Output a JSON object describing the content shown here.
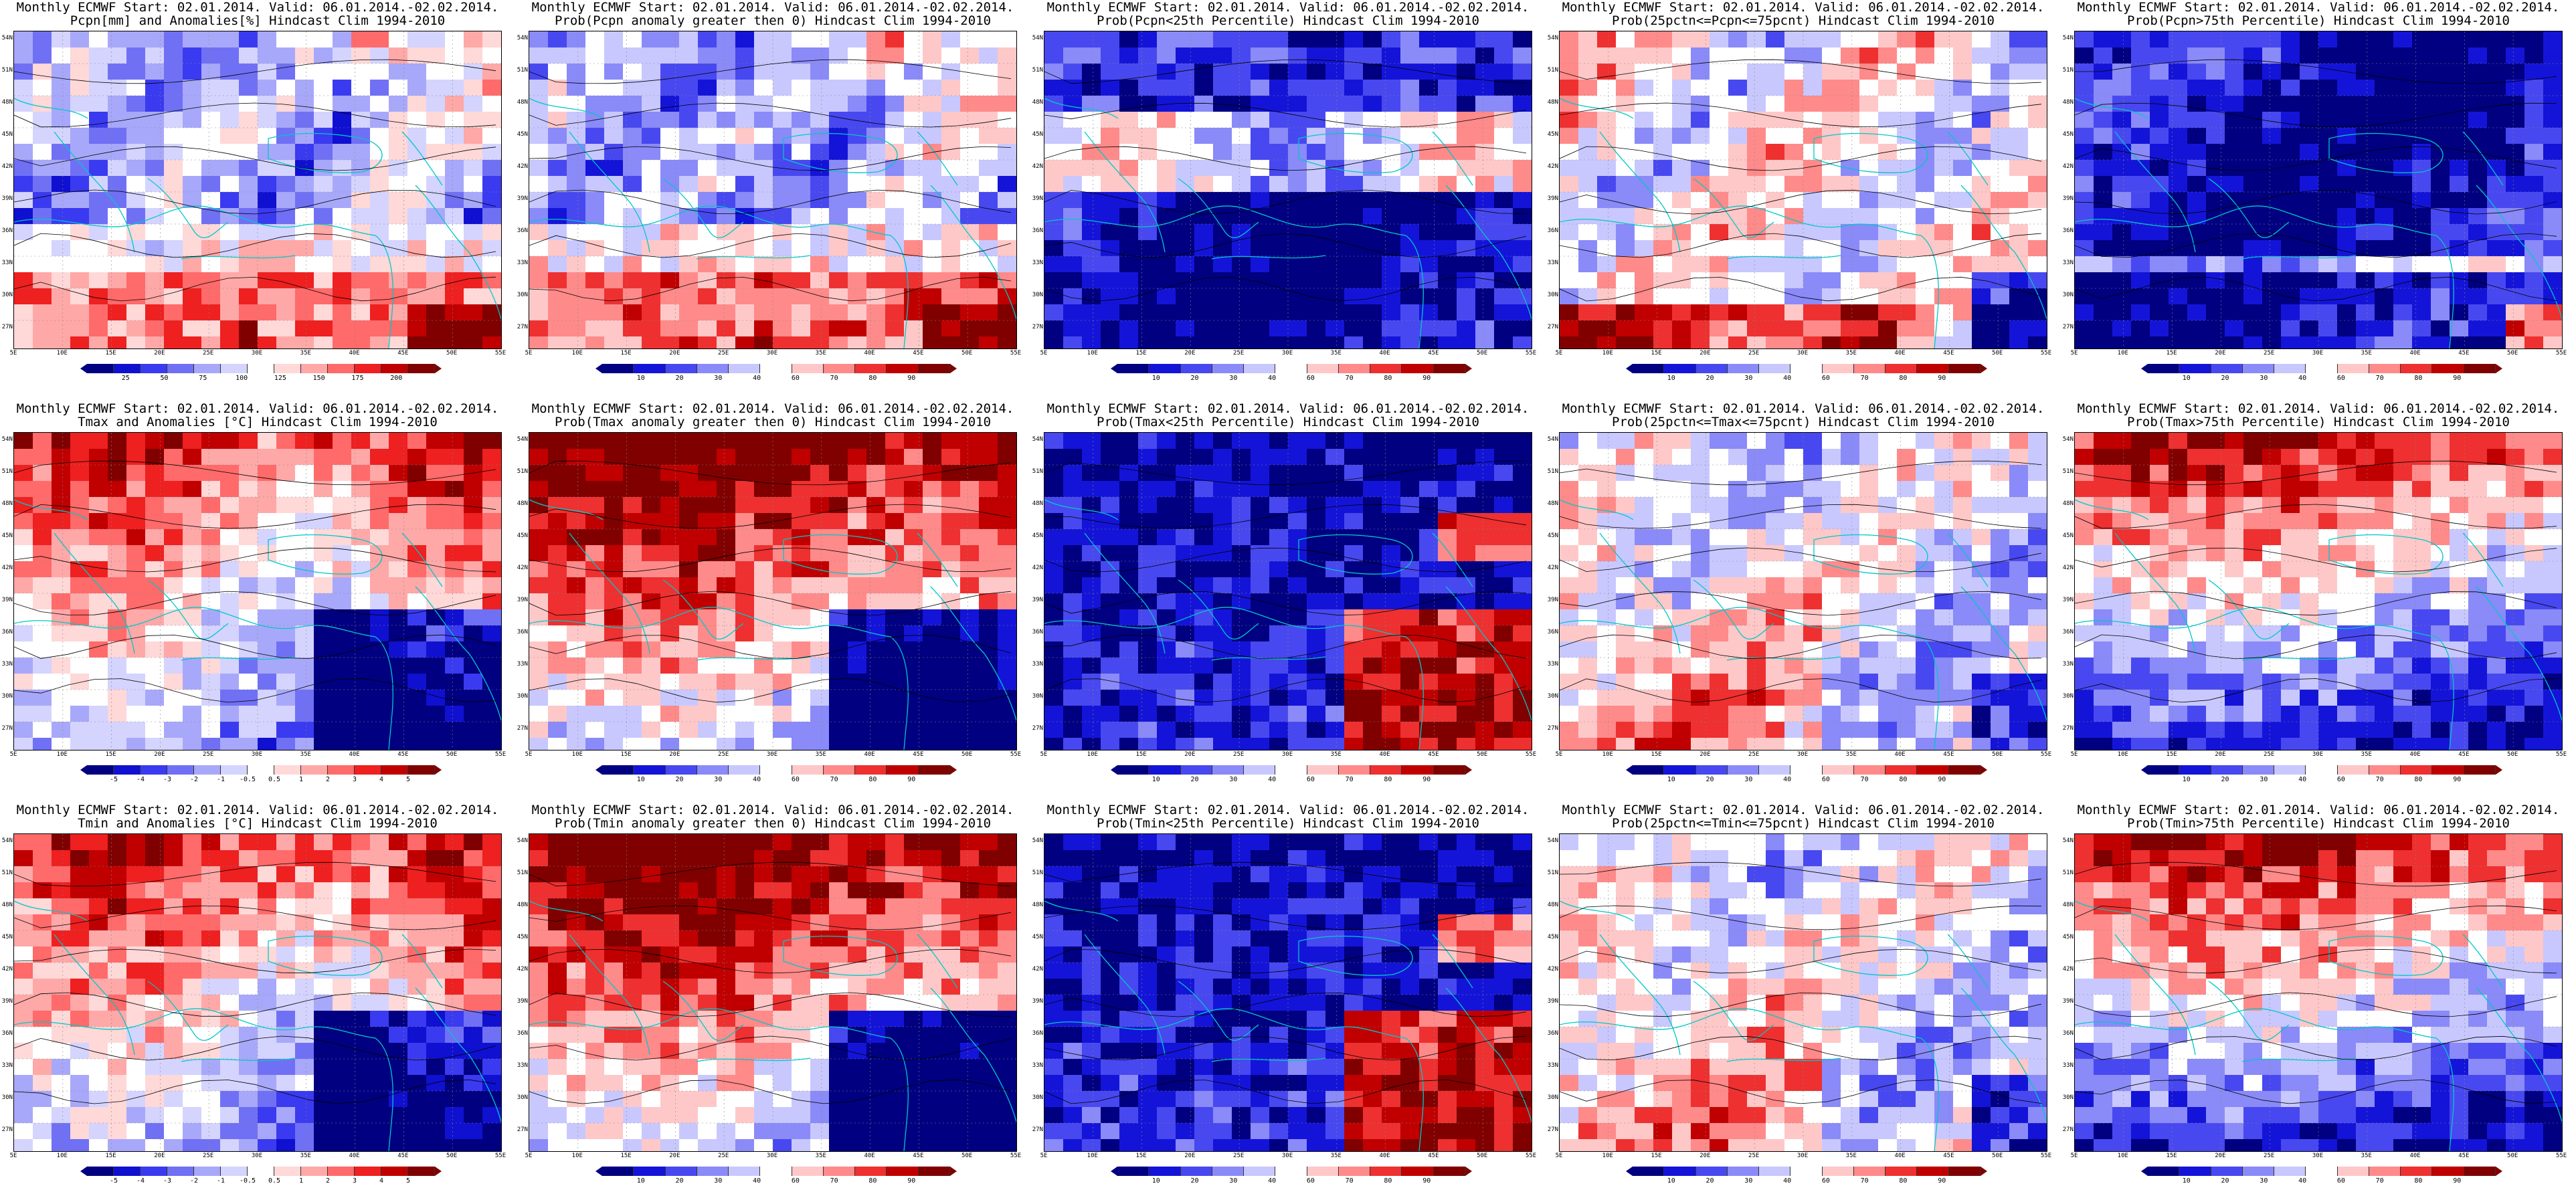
{
  "common": {
    "header": "Monthly ECMWF Start: 02.01.2014. Valid: 06.01.2014.-02.02.2014.",
    "lat_labels": [
      "54N",
      "51N",
      "48N",
      "45N",
      "42N",
      "39N",
      "36N",
      "33N",
      "30N",
      "27N"
    ],
    "lon_labels": [
      "5E",
      "10E",
      "15E",
      "20E",
      "25E",
      "30E",
      "35E",
      "40E",
      "45E",
      "50E",
      "55E"
    ]
  },
  "colors": {
    "anomaly_scale": [
      "#000080",
      "#1010d0",
      "#3a3af0",
      "#7070f5",
      "#a8a8fa",
      "#d4d4ff",
      "#ffffff",
      "#ffd8d8",
      "#ffa8a8",
      "#ff6a6a",
      "#ee2020",
      "#c00000",
      "#800000"
    ],
    "prob_scale": [
      "#000080",
      "#1414d8",
      "#4848f0",
      "#8a8af8",
      "#c8c8ff",
      "#ffffff",
      "#ffc8c8",
      "#ff8a8a",
      "#ee3030",
      "#c00000",
      "#800000"
    ],
    "coast": "#00c8c8",
    "contour": "#000000"
  },
  "panels": [
    {
      "subtitle": "Pcpn[mm] and Anomalies[%] Hindcast Clim 1994-2010",
      "ticks": [
        "25",
        "50",
        "75",
        "100",
        "125",
        "150",
        "175",
        "200"
      ],
      "scale": "anomaly",
      "pattern": "precip_anom"
    },
    {
      "subtitle": "Prob(Pcpn anomaly greater then 0) Hindcast Clim 1994-2010",
      "ticks": [
        "10",
        "20",
        "30",
        "40",
        "60",
        "70",
        "80",
        "90"
      ],
      "scale": "prob",
      "pattern": "precip_anom"
    },
    {
      "subtitle": "Prob(Pcpn<25th Percentile) Hindcast Clim 1994-2010",
      "ticks": [
        "10",
        "20",
        "30",
        "40",
        "60",
        "70",
        "80",
        "90"
      ],
      "scale": "prob",
      "pattern": "dry_blue"
    },
    {
      "subtitle": "Prob(25pctn<=Pcpn<=75pcnt) Hindcast Clim 1994-2010",
      "ticks": [
        "10",
        "20",
        "30",
        "40",
        "60",
        "70",
        "80",
        "90"
      ],
      "scale": "prob",
      "pattern": "mixed_light"
    },
    {
      "subtitle": "Prob(Pcpn>75th Percentile) Hindcast Clim 1994-2010",
      "ticks": [
        "10",
        "20",
        "30",
        "40",
        "60",
        "70",
        "80",
        "90"
      ],
      "scale": "prob",
      "pattern": "wet_blue"
    },
    {
      "subtitle": "Tmax and Anomalies [°C] Hindcast Clim 1994-2010",
      "ticks": [
        "-5",
        "-4",
        "-3",
        "-2",
        "-1",
        "-0.5",
        "0.5",
        "1",
        "2",
        "3",
        "4",
        "5"
      ],
      "scale": "anomaly",
      "pattern": "warm_north"
    },
    {
      "subtitle": "Prob(Tmax anomaly greater then 0) Hindcast Clim 1994-2010",
      "ticks": [
        "10",
        "20",
        "30",
        "40",
        "60",
        "70",
        "80",
        "90"
      ],
      "scale": "prob",
      "pattern": "hot_north"
    },
    {
      "subtitle": "Prob(Tmax<25th Percentile) Hindcast Clim 1994-2010",
      "ticks": [
        "10",
        "20",
        "30",
        "40",
        "60",
        "70",
        "80",
        "90"
      ],
      "scale": "prob",
      "pattern": "cold_prob"
    },
    {
      "subtitle": "Prob(25pctn<=Tmax<=75pcnt) Hindcast Clim 1994-2010",
      "ticks": [
        "10",
        "20",
        "30",
        "40",
        "60",
        "70",
        "80",
        "90"
      ],
      "scale": "prob",
      "pattern": "mixed_warm"
    },
    {
      "subtitle": "Prob(Tmax>75th Percentile) Hindcast Clim 1994-2010",
      "ticks": [
        "10",
        "20",
        "30",
        "40",
        "60",
        "70",
        "80",
        "90"
      ],
      "scale": "prob",
      "pattern": "warm_upper"
    },
    {
      "subtitle": "Tmin and Anomalies [°C] Hindcast Clim 1994-2010",
      "ticks": [
        "-5",
        "-4",
        "-3",
        "-2",
        "-1",
        "-0.5",
        "0.5",
        "1",
        "2",
        "3",
        "4",
        "5"
      ],
      "scale": "anomaly",
      "pattern": "warm_north"
    },
    {
      "subtitle": "Prob(Tmin anomaly greater then 0) Hindcast Clim 1994-2010",
      "ticks": [
        "10",
        "20",
        "30",
        "40",
        "60",
        "70",
        "80",
        "90"
      ],
      "scale": "prob",
      "pattern": "hot_north"
    },
    {
      "subtitle": "Prob(Tmin<25th Percentile) Hindcast Clim 1994-2010",
      "ticks": [
        "10",
        "20",
        "30",
        "40",
        "60",
        "70",
        "80",
        "90"
      ],
      "scale": "prob",
      "pattern": "cold_prob"
    },
    {
      "subtitle": "Prob(25pctn<=Tmin<=75pcnt) Hindcast Clim 1994-2010",
      "ticks": [
        "10",
        "20",
        "30",
        "40",
        "60",
        "70",
        "80",
        "90"
      ],
      "scale": "prob",
      "pattern": "mixed_warm"
    },
    {
      "subtitle": "Prob(Tmin>75th Percentile) Hindcast Clim 1994-2010",
      "ticks": [
        "10",
        "20",
        "30",
        "40",
        "60",
        "70",
        "80",
        "90"
      ],
      "scale": "prob",
      "pattern": "warm_upper"
    }
  ]
}
